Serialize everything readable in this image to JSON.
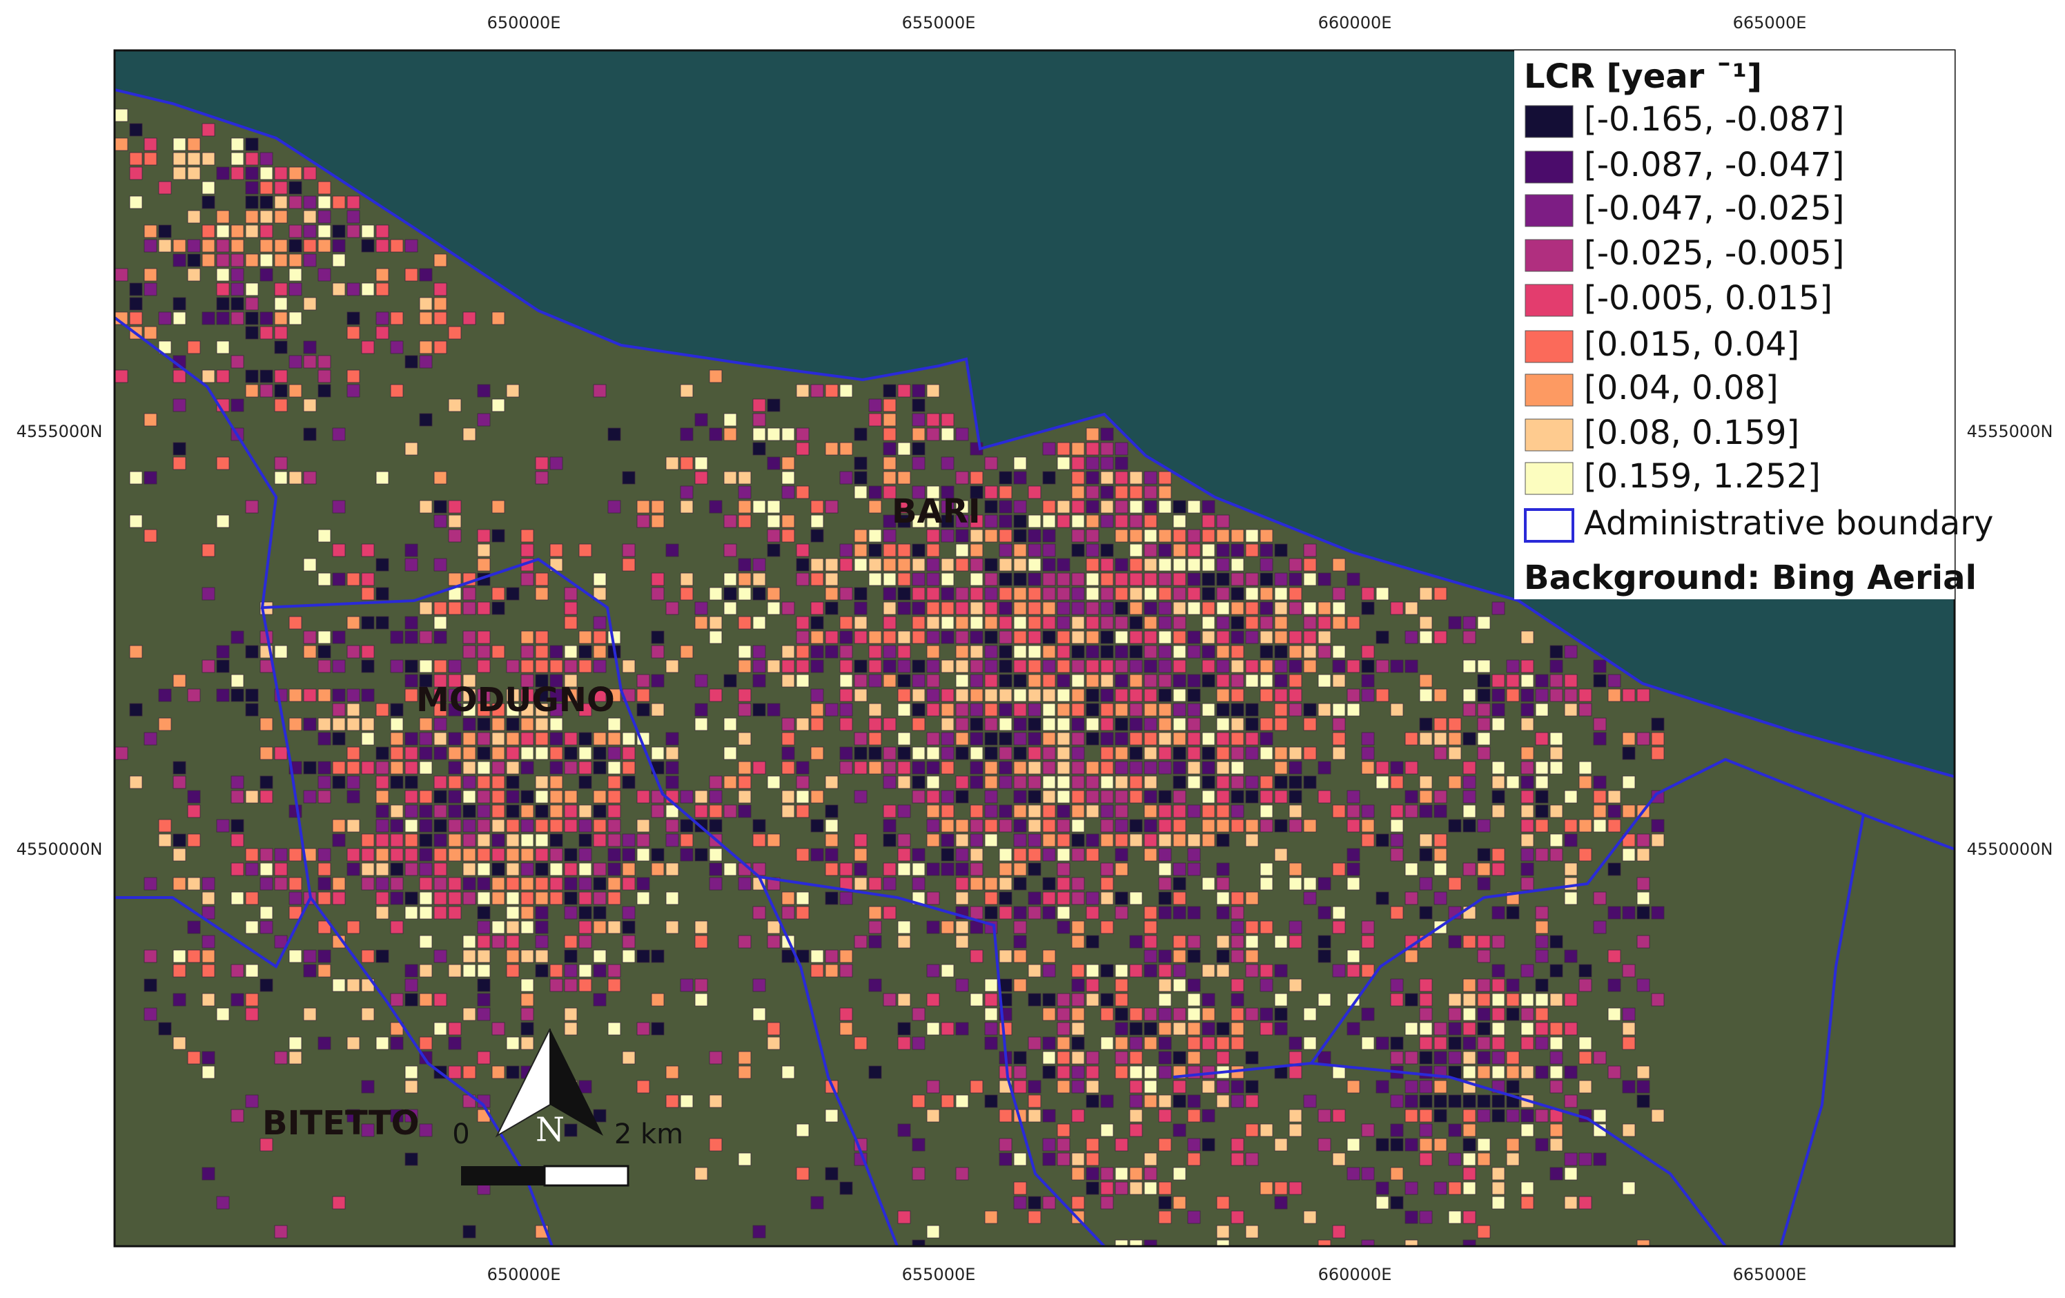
{
  "axes": {
    "x_ticks": [
      "650000E",
      "655000E",
      "660000E",
      "665000E"
    ],
    "y_ticks": [
      "4555000N",
      "4550000N"
    ]
  },
  "legend": {
    "title": "LCR [year ¯¹]",
    "items": [
      {
        "label": "[-0.165, -0.087]",
        "color": "#140e36"
      },
      {
        "label": "[-0.087, -0.047]",
        "color": "#4b0c6b"
      },
      {
        "label": "[-0.047, -0.025]",
        "color": "#7d1d84"
      },
      {
        "label": "[-0.025, -0.005]",
        "color": "#b02f7f"
      },
      {
        "label": "[-0.005, 0.015]",
        "color": "#e33d6e"
      },
      {
        "label": "[0.015, 0.04]",
        "color": "#fb6a5a"
      },
      {
        "label": "[0.04, 0.08]",
        "color": "#fd9a62"
      },
      {
        "label": "[0.08, 0.159]",
        "color": "#fecb8f"
      },
      {
        "label": "[0.159, 1.252]",
        "color": "#fcfdbf"
      }
    ],
    "boundary": {
      "label": "Administrative boundary",
      "color": "#2a2ad8"
    },
    "background": "Background: Bing Aerial"
  },
  "places": [
    "BARI",
    "MODUGNO",
    "BITETTO"
  ],
  "north": "N",
  "scale_bar": {
    "start": "0",
    "end": "2 km"
  }
}
